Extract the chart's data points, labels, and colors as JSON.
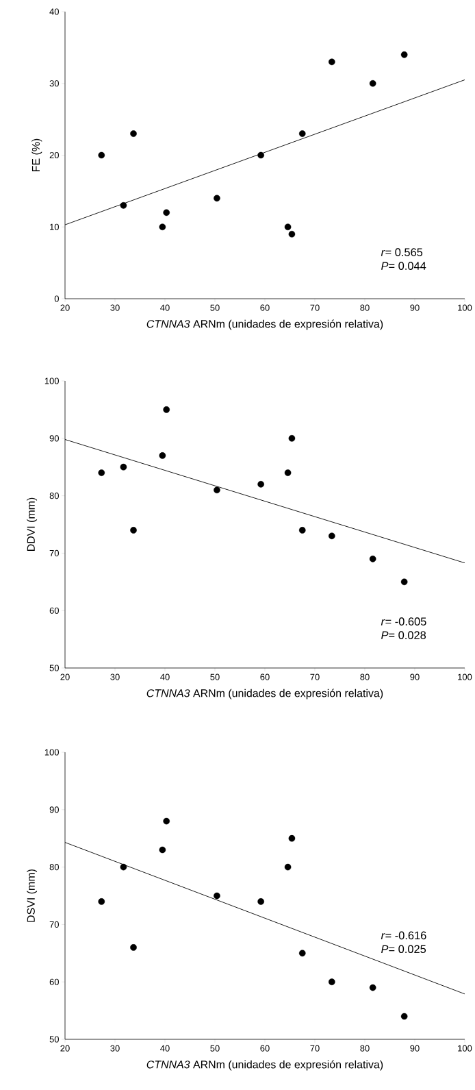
{
  "chart_data": [
    {
      "type": "scatter",
      "xlabel": "*CTNNA3* ARNm (unidades de expresión relativa)",
      "ylabel": "FE (%)",
      "xlim": [
        20,
        100
      ],
      "xticks": [
        20,
        30,
        40,
        50,
        60,
        70,
        80,
        90,
        100
      ],
      "ylim": [
        0,
        40
      ],
      "yticks": [
        0,
        10,
        20,
        30,
        40
      ],
      "annotations": [
        "*r*= 0.565",
        "*P*= 0.044"
      ],
      "series": [
        {
          "marker": "circle",
          "color": "#000000",
          "x": [
            27.3,
            31.7,
            33.7,
            39.5,
            40.3,
            50.4,
            59.2,
            64.6,
            65.4,
            67.5,
            73.4,
            81.6,
            87.9
          ],
          "values": [
            20,
            13,
            23,
            10,
            12,
            14,
            20,
            10,
            9,
            23,
            33,
            30,
            34
          ]
        },
        {
          "type": "line",
          "color": "#000000",
          "x": [
            20,
            100
          ],
          "values": [
            10.3,
            30.5
          ]
        }
      ]
    },
    {
      "type": "scatter",
      "xlabel": "*CTNNA3* ARNm (unidades de expresión relativa)",
      "ylabel": "DDVI (mm)",
      "xlim": [
        20,
        100
      ],
      "xticks": [
        20,
        30,
        40,
        50,
        60,
        70,
        80,
        90,
        100
      ],
      "ylim": [
        50,
        100
      ],
      "yticks": [
        50,
        60,
        70,
        80,
        90,
        100
      ],
      "annotations": [
        "*r*= -0.605",
        "*P*= 0.028"
      ],
      "series": [
        {
          "marker": "circle",
          "color": "#000000",
          "x": [
            27.3,
            31.7,
            33.7,
            39.5,
            40.3,
            50.4,
            59.2,
            64.6,
            65.4,
            67.5,
            73.4,
            81.6,
            87.9
          ],
          "values": [
            84,
            85,
            74,
            87,
            95,
            81,
            82,
            84,
            90,
            74,
            73,
            69,
            65
          ]
        },
        {
          "type": "line",
          "color": "#000000",
          "x": [
            20,
            100
          ],
          "values": [
            89.8,
            68.3
          ]
        }
      ]
    },
    {
      "type": "scatter",
      "xlabel": "*CTNNA3* ARNm (unidades de expresión relativa)",
      "ylabel": "DSVI (mm)",
      "xlim": [
        20,
        100
      ],
      "xticks": [
        20,
        30,
        40,
        50,
        60,
        70,
        80,
        90,
        100
      ],
      "ylim": [
        50,
        100
      ],
      "yticks": [
        50,
        60,
        70,
        80,
        90,
        100
      ],
      "annotations": [
        "*r*= -0.616",
        "*P*= 0.025"
      ],
      "series": [
        {
          "marker": "circle",
          "color": "#000000",
          "x": [
            27.3,
            31.7,
            33.7,
            39.5,
            40.3,
            50.4,
            59.2,
            64.6,
            65.4,
            67.5,
            73.4,
            81.6,
            87.9
          ],
          "values": [
            74,
            80,
            66,
            83,
            88,
            75,
            74,
            80,
            85,
            65,
            60,
            59,
            54
          ]
        },
        {
          "type": "line",
          "color": "#000000",
          "x": [
            20,
            100
          ],
          "values": [
            84.3,
            57.9
          ]
        }
      ]
    }
  ]
}
